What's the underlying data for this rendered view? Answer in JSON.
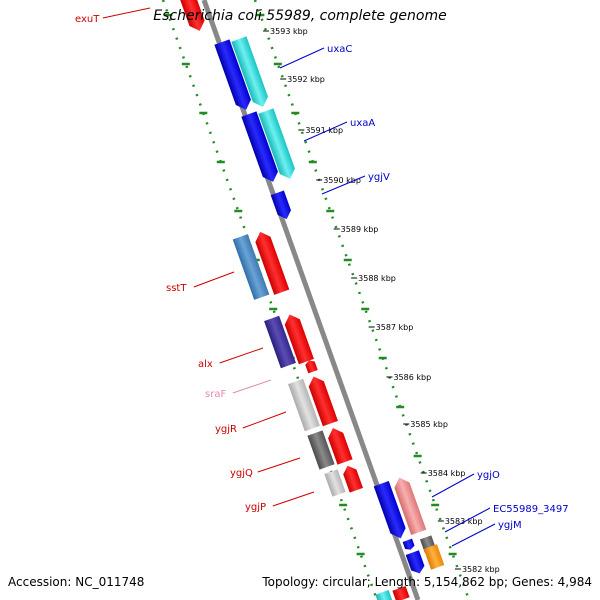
{
  "title": "Escherichia coli 55989, complete genome",
  "footer": {
    "accession": "Accession: NC_011748",
    "summary": "Topology: circular; Length: 5,154,862 bp; Genes: 4,984"
  },
  "colors": {
    "label_left": "#cc0000",
    "label_right": "#0000cc",
    "label_pink": "#e38ab5",
    "backbone": "#888888",
    "dot_track": "#228b22"
  },
  "ticks": [
    {
      "kbp": 3593,
      "label": "3593 kbp"
    },
    {
      "kbp": 3592,
      "label": "3592 kbp"
    },
    {
      "kbp": 3591,
      "label": "3591 kbp"
    },
    {
      "kbp": 3590,
      "label": "3590 kbp"
    },
    {
      "kbp": 3589,
      "label": "3589 kbp"
    },
    {
      "kbp": 3588,
      "label": "3588 kbp"
    },
    {
      "kbp": 3587,
      "label": "3587 kbp"
    },
    {
      "kbp": 3586,
      "label": "3586 kbp"
    },
    {
      "kbp": 3585,
      "label": "3585 kbp"
    },
    {
      "kbp": 3584,
      "label": "3584 kbp"
    },
    {
      "kbp": 3583,
      "label": "3583 kbp"
    },
    {
      "kbp": 3582,
      "label": "3582 kbp"
    }
  ],
  "genes": [
    {
      "name": "exuT",
      "side": "left"
    },
    {
      "name": "uxaC",
      "side": "right"
    },
    {
      "name": "uxaA",
      "side": "right"
    },
    {
      "name": "ygjV",
      "side": "right"
    },
    {
      "name": "sstT",
      "side": "left"
    },
    {
      "name": "alx",
      "side": "left"
    },
    {
      "name": "sraF",
      "side": "left"
    },
    {
      "name": "ygjR",
      "side": "left"
    },
    {
      "name": "ygjQ",
      "side": "left"
    },
    {
      "name": "ygjP",
      "side": "left"
    },
    {
      "name": "ygjO",
      "side": "right"
    },
    {
      "name": "EC55989_3497",
      "side": "right"
    },
    {
      "name": "ygjM",
      "side": "right"
    }
  ]
}
